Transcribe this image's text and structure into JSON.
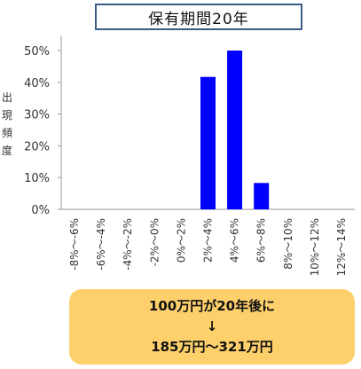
{
  "title": "保有期間20年",
  "callout": {
    "line1": "100万円が20年後に",
    "arrow": "↓",
    "line2": "185万円〜321万円"
  },
  "chart_data": {
    "type": "bar",
    "title": "保有期間20年",
    "ylabel": "出現頻度",
    "xlabel": "",
    "categories": [
      "-8%〜-6%",
      "-6%〜-4%",
      "-4%〜-2%",
      "-2%〜0%",
      "0%〜2%",
      "2%〜4%",
      "4%〜6%",
      "6%〜8%",
      "8%〜10%",
      "10%〜12%",
      "12%〜14%"
    ],
    "values": [
      0,
      0,
      0,
      0,
      0,
      41.7,
      50.0,
      8.3,
      0,
      0,
      0
    ],
    "y_ticks": [
      "0%",
      "10%",
      "20%",
      "30%",
      "40%",
      "50%"
    ],
    "ylim": [
      0,
      50
    ],
    "bar_color": "#0000ff",
    "grid": false,
    "legend": "none"
  }
}
